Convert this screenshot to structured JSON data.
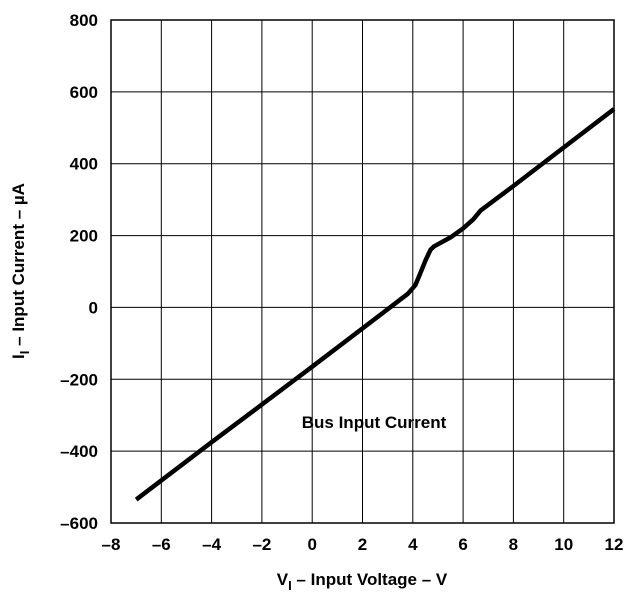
{
  "chart_data": {
    "type": "line",
    "title": "",
    "xlabel": {
      "main": "V",
      "subscript": "I",
      "rest": " – Input Voltage – V"
    },
    "ylabel": {
      "main": "I",
      "subscript": "I",
      "rest": " – Input Current – µA"
    },
    "xlim": [
      -8,
      12
    ],
    "ylim": [
      -600,
      800
    ],
    "xticks": [
      -8,
      -6,
      -4,
      -2,
      0,
      2,
      4,
      6,
      8,
      10,
      12
    ],
    "yticks": [
      -600,
      -400,
      -200,
      0,
      200,
      400,
      600,
      800
    ],
    "xtick_labels": [
      "–8",
      "–6",
      "–4",
      "–2",
      "0",
      "2",
      "4",
      "6",
      "8",
      "10",
      "12"
    ],
    "ytick_labels": [
      "–600",
      "–400",
      "–200",
      "0",
      "200",
      "400",
      "600",
      "800"
    ],
    "grid": true,
    "legend": "none",
    "line_color": "#000000",
    "annotation": "Bus Input Current",
    "series": [
      {
        "x": [
          -7,
          -4,
          0,
          3,
          3.8,
          4.1,
          4.3,
          4.5,
          4.7,
          4.85,
          5.5,
          6,
          6.4,
          6.7,
          8,
          10,
          12
        ],
        "y": [
          -535,
          -375,
          -165,
          -5,
          38,
          62,
          95,
          130,
          160,
          170,
          195,
          220,
          245,
          270,
          338,
          445,
          552
        ]
      }
    ]
  }
}
